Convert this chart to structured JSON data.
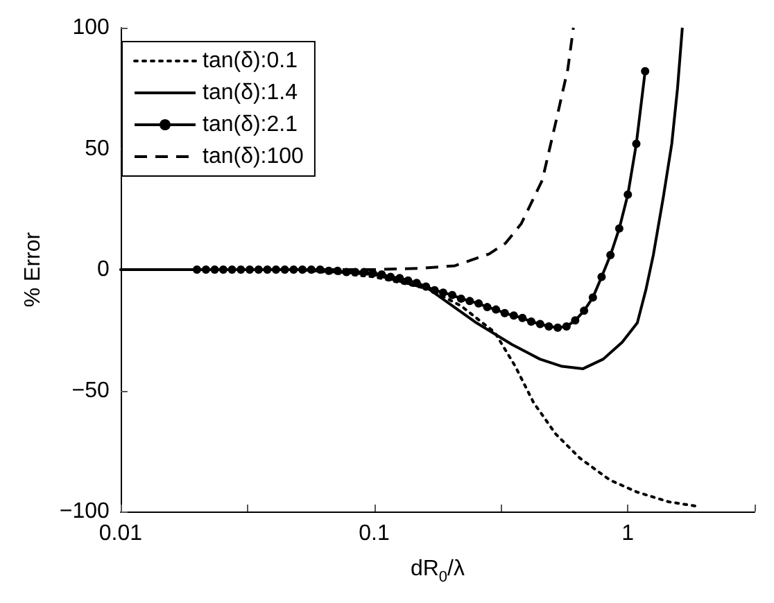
{
  "chart_data": {
    "type": "line",
    "xlabel": "dR$_{0}$/λ",
    "ylabel": "% Error",
    "log": "x",
    "xlim": [
      0.01,
      3.16
    ],
    "xticks": [
      0.01,
      {
        "value": 0.0316,
        "label": null
      },
      0.1,
      {
        "value": 0.316,
        "label": null
      },
      1,
      {
        "value": 3.16,
        "label": null
      }
    ],
    "ylim": [
      -100,
      100
    ],
    "yticks": [
      -100,
      -50,
      0,
      50,
      100
    ],
    "grid": false,
    "legend": "top left",
    "series": [
      {
        "name": "tan(δ):0.1",
        "color": "#000000",
        "line_style": "dotted",
        "marker": "none",
        "x": [
          0.01,
          0.05,
          0.1,
          0.164,
          0.22,
          0.299,
          0.36,
          0.425,
          0.52,
          0.648,
          0.85,
          1.09,
          1.45,
          1.92
        ],
        "values": [
          0,
          0,
          -3,
          -8,
          -15,
          -26,
          -40,
          -55,
          -68,
          -78,
          -87,
          -92,
          -96,
          -98
        ]
      },
      {
        "name": "tan(δ):1.4",
        "color": "#000000",
        "line_style": "solid",
        "marker": "none",
        "x": [
          0.01,
          0.05,
          0.1,
          0.164,
          0.253,
          0.35,
          0.45,
          0.55,
          0.664,
          0.8,
          0.95,
          1.09,
          1.18,
          1.26,
          1.38,
          1.49,
          1.57,
          1.64
        ],
        "values": [
          0,
          0,
          -2,
          -8,
          -22,
          -31,
          -37,
          -40,
          -41,
          -37,
          -30,
          -22,
          -8,
          6,
          30,
          52,
          75,
          100
        ]
      },
      {
        "name": "tan(δ):2.1",
        "color": "#000000",
        "line_style": "solid",
        "marker": "circle",
        "x": [
          0.02,
          0.0217,
          0.0235,
          0.0254,
          0.0275,
          0.0298,
          0.0323,
          0.035,
          0.0379,
          0.041,
          0.0444,
          0.0481,
          0.0521,
          0.0565,
          0.0612,
          0.0662,
          0.0717,
          0.0777,
          0.0842,
          0.0912,
          0.0988,
          0.107,
          0.116,
          0.126,
          0.136,
          0.147,
          0.16,
          0.173,
          0.187,
          0.203,
          0.22,
          0.238,
          0.258,
          0.279,
          0.302,
          0.327,
          0.355,
          0.384,
          0.416,
          0.451,
          0.488,
          0.529,
          0.573,
          0.62,
          0.672,
          0.728,
          0.788,
          0.854,
          0.925,
          1.0,
          1.08,
          1.17
        ],
        "values": [
          0,
          0,
          0,
          0,
          0,
          0,
          0,
          0,
          0,
          0,
          0,
          0,
          0,
          0,
          0,
          -0.5,
          -0.5,
          -1,
          -1,
          -1,
          -1.5,
          -2,
          -3,
          -3.5,
          -4.5,
          -5.5,
          -7,
          -8.5,
          -9.5,
          -10.5,
          -12,
          -13,
          -14,
          -15.5,
          -16.5,
          -18,
          -19,
          -20,
          -21.5,
          -22.5,
          -23.5,
          -24,
          -23.5,
          -21,
          -17,
          -11.5,
          -3,
          6,
          17,
          31,
          52,
          82
        ]
      },
      {
        "name": "tan(δ):100",
        "color": "#000000",
        "line_style": "dashed",
        "marker": "none",
        "x": [
          0.02,
          0.05,
          0.1,
          0.15,
          0.208,
          0.284,
          0.33,
          0.38,
          0.46,
          0.52,
          0.58,
          0.61
        ],
        "values": [
          0,
          0,
          0,
          0.5,
          1.6,
          6.5,
          11,
          19,
          37,
          61,
          83,
          100
        ]
      }
    ]
  }
}
